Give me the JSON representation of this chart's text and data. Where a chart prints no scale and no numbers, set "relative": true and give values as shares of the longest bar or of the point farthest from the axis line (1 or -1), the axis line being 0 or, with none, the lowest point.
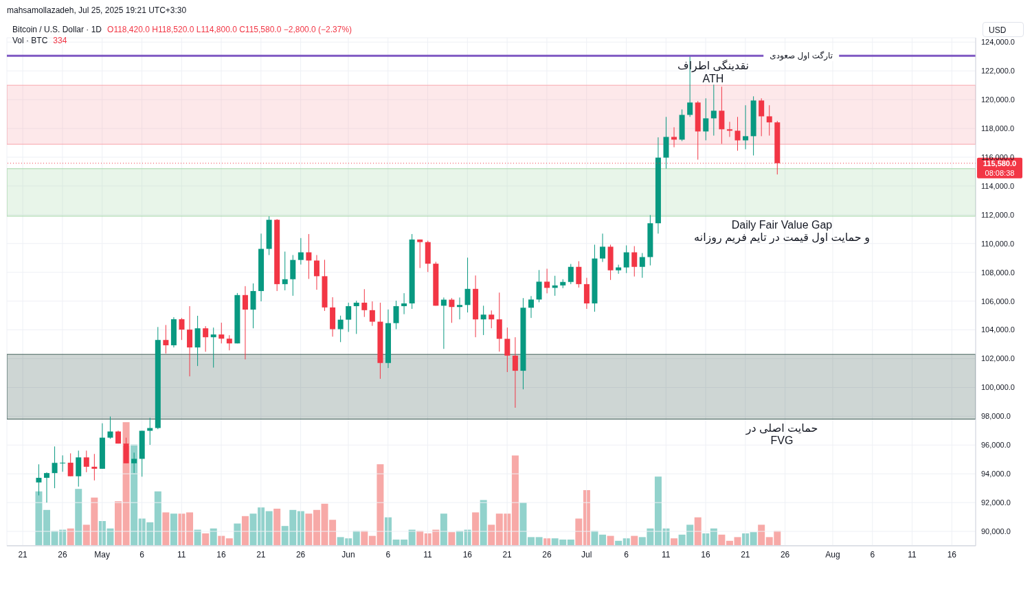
{
  "chart_data": [
    {
      "type": "candlestick",
      "title": "Bitcoin / U.S. Dollar · 1D",
      "ylabel": "USD",
      "annotations": [
        "mahsamollazadeh, Jul 25, 2025 19:21 UTC+3:30",
        "O118,420.0 H118,520.0 L114,800.0 C115,580.0 −2,800.0 (−2.37%)",
        "08:08:38",
        "نقدینگی اطراف\nATH"
      ],
      "x": [
        "2025-04-23",
        "2025-04-24",
        "2025-04-25",
        "2025-04-26",
        "2025-04-27",
        "2025-04-28",
        "2025-04-29",
        "2025-04-30",
        "2025-05-01",
        "2025-05-02",
        "2025-05-03",
        "2025-05-04",
        "2025-05-05",
        "2025-05-06",
        "2025-05-07",
        "2025-05-08",
        "2025-05-09",
        "2025-05-10",
        "2025-05-11",
        "2025-05-12",
        "2025-05-13",
        "2025-05-14",
        "2025-05-15",
        "2025-05-16",
        "2025-05-17",
        "2025-05-18",
        "2025-05-19",
        "2025-05-20",
        "2025-05-21",
        "2025-05-22",
        "2025-05-23",
        "2025-05-24",
        "2025-05-25",
        "2025-05-26",
        "2025-05-27",
        "2025-05-28",
        "2025-05-29",
        "2025-05-30",
        "2025-05-31",
        "2025-06-01",
        "2025-06-02",
        "2025-06-03",
        "2025-06-04",
        "2025-06-05",
        "2025-06-06",
        "2025-06-07",
        "2025-06-08",
        "2025-06-09",
        "2025-06-10",
        "2025-06-11",
        "2025-06-12",
        "2025-06-13",
        "2025-06-14",
        "2025-06-15",
        "2025-06-16",
        "2025-06-17",
        "2025-06-18",
        "2025-06-19",
        "2025-06-20",
        "2025-06-21",
        "2025-06-22",
        "2025-06-23",
        "2025-06-24",
        "2025-06-25",
        "2025-06-26",
        "2025-06-27",
        "2025-06-28",
        "2025-06-29",
        "2025-06-30",
        "2025-07-01",
        "2025-07-02",
        "2025-07-03",
        "2025-07-04",
        "2025-07-05",
        "2025-07-06",
        "2025-07-07",
        "2025-07-08",
        "2025-07-09",
        "2025-07-10",
        "2025-07-11",
        "2025-07-12",
        "2025-07-13",
        "2025-07-14",
        "2025-07-15",
        "2025-07-16",
        "2025-07-17",
        "2025-07-18",
        "2025-07-19",
        "2025-07-20",
        "2025-07-21",
        "2025-07-22",
        "2025-07-23",
        "2025-07-24",
        "2025-07-25"
      ],
      "ohlc": [
        [
          93400,
          94660,
          92500,
          93720
        ],
        [
          93720,
          94100,
          92000,
          94050
        ],
        [
          94050,
          95900,
          93000,
          94760
        ],
        [
          94760,
          95280,
          94140,
          94770
        ],
        [
          94770,
          95420,
          93830,
          93830
        ],
        [
          93830,
          95610,
          93110,
          95140
        ],
        [
          95140,
          95610,
          94110,
          94490
        ],
        [
          94490,
          95380,
          93540,
          94350
        ],
        [
          94350,
          97510,
          94350,
          96510
        ],
        [
          96510,
          97980,
          96430,
          96940
        ],
        [
          96940,
          97000,
          96100,
          96100
        ],
        [
          96100,
          96510,
          94730,
          94730
        ],
        [
          94730,
          95470,
          94060,
          95040
        ],
        [
          95040,
          96990,
          93800,
          96990
        ],
        [
          96990,
          97890,
          96010,
          97180
        ],
        [
          97180,
          104200,
          97100,
          103300
        ],
        [
          103300,
          104340,
          102360,
          102930
        ],
        [
          102930,
          104880,
          102780,
          104740
        ],
        [
          104740,
          104830,
          103300,
          104020
        ],
        [
          104020,
          105650,
          100770,
          102780
        ],
        [
          102780,
          104980,
          101490,
          104110
        ],
        [
          104110,
          104260,
          102480,
          103490
        ],
        [
          103490,
          104160,
          101380,
          103680
        ],
        [
          103680,
          104500,
          103060,
          103390
        ],
        [
          103390,
          103630,
          102580,
          103060
        ],
        [
          103060,
          106560,
          103060,
          106420
        ],
        [
          106420,
          107040,
          101950,
          105410
        ],
        [
          105410,
          107230,
          104110,
          106700
        ],
        [
          106700,
          110690,
          105980,
          109630
        ],
        [
          109630,
          111890,
          109200,
          111650
        ],
        [
          111650,
          111700,
          106700,
          107180
        ],
        [
          107180,
          109440,
          106750,
          107520
        ],
        [
          107520,
          109200,
          106370,
          108860
        ],
        [
          108860,
          110380,
          108540,
          109390
        ],
        [
          109390,
          110660,
          107540,
          108820
        ],
        [
          108820,
          109200,
          106790,
          107730
        ],
        [
          107730,
          108870,
          105320,
          105560
        ],
        [
          105560,
          106270,
          103530,
          104050
        ],
        [
          104050,
          104990,
          103150,
          104710
        ],
        [
          104710,
          105890,
          103860,
          105650
        ],
        [
          105650,
          106030,
          103720,
          105890
        ],
        [
          105890,
          106830,
          104900,
          105370
        ],
        [
          105370,
          105980,
          104280,
          104570
        ],
        [
          104570,
          105890,
          100600,
          101700
        ],
        [
          101700,
          105420,
          101350,
          104470
        ],
        [
          104470,
          106030,
          104050,
          105650
        ],
        [
          105650,
          106550,
          105090,
          105840
        ],
        [
          105840,
          110660,
          105460,
          110280
        ],
        [
          110280,
          110280,
          108300,
          110100
        ],
        [
          110100,
          110200,
          108020,
          108600
        ],
        [
          108600,
          108730,
          105680,
          105680
        ],
        [
          105680,
          106250,
          102680,
          106100
        ],
        [
          106100,
          106210,
          104490,
          105590
        ],
        [
          105590,
          106250,
          104730,
          105730
        ],
        [
          105730,
          109020,
          105210,
          106850
        ],
        [
          106850,
          107780,
          103490,
          104730
        ],
        [
          104730,
          105680,
          103640,
          105060
        ],
        [
          105060,
          105350,
          104110,
          104730
        ],
        [
          104730,
          106590,
          102490,
          103380
        ],
        [
          103380,
          104160,
          101070,
          102210
        ],
        [
          102210,
          103490,
          98590,
          101160
        ],
        [
          101160,
          106210,
          99870,
          105540
        ],
        [
          105540,
          106350,
          104830,
          106110
        ],
        [
          106110,
          108160,
          105920,
          107350
        ],
        [
          107350,
          108250,
          106540,
          106920
        ],
        [
          106920,
          107760,
          106370,
          107090
        ],
        [
          107090,
          107520,
          106900,
          107330
        ],
        [
          107330,
          108580,
          107180,
          108380
        ],
        [
          108380,
          108770,
          106940,
          107180
        ],
        [
          107180,
          107620,
          105460,
          105840
        ],
        [
          105840,
          109920,
          105260,
          108960
        ],
        [
          108960,
          110690,
          108720,
          109780
        ],
        [
          109780,
          109920,
          107470,
          108140
        ],
        [
          108140,
          108530,
          107900,
          108340
        ],
        [
          108340,
          109870,
          107950,
          109390
        ],
        [
          109390,
          109820,
          107710,
          108380
        ],
        [
          108380,
          109340,
          107620,
          109060
        ],
        [
          109060,
          111980,
          108480,
          111410
        ],
        [
          111410,
          117380,
          110690,
          115970
        ],
        [
          115970,
          118800,
          115210,
          117410
        ],
        [
          117410,
          118080,
          116690,
          117220
        ],
        [
          117220,
          119320,
          117120,
          118940
        ],
        [
          118940,
          123080,
          118800,
          119800
        ],
        [
          119800,
          119900,
          115830,
          117790
        ],
        [
          117790,
          120090,
          117170,
          118700
        ],
        [
          118700,
          121040,
          117500,
          119230
        ],
        [
          119230,
          120900,
          116930,
          117940
        ],
        [
          117940,
          118460,
          117410,
          117840
        ],
        [
          117840,
          118800,
          116450,
          117170
        ],
        [
          117170,
          119610,
          116550,
          117460
        ],
        [
          117460,
          120230,
          116120,
          119940
        ],
        [
          119940,
          120090,
          117460,
          118840
        ],
        [
          118840,
          119610,
          117500,
          118420
        ],
        [
          118420,
          118520,
          114800,
          115580
        ]
      ],
      "xlim": [
        "2025-04-19",
        "2025-08-19"
      ],
      "xticks": [
        {
          "value": "2025-04-21",
          "label": "21"
        },
        {
          "value": "2025-04-26",
          "label": "26"
        },
        {
          "value": "2025-05-01",
          "label": "May"
        },
        {
          "value": "2025-05-06",
          "label": "6"
        },
        {
          "value": "2025-05-11",
          "label": "11"
        },
        {
          "value": "2025-05-16",
          "label": "16"
        },
        {
          "value": "2025-05-21",
          "label": "21"
        },
        {
          "value": "2025-05-26",
          "label": "26"
        },
        {
          "value": "2025-06-01",
          "label": "Jun"
        },
        {
          "value": "2025-06-06",
          "label": "6"
        },
        {
          "value": "2025-06-11",
          "label": "11"
        },
        {
          "value": "2025-06-16",
          "label": "16"
        },
        {
          "value": "2025-06-21",
          "label": "21"
        },
        {
          "value": "2025-06-26",
          "label": "26"
        },
        {
          "value": "2025-07-01",
          "label": "Jul"
        },
        {
          "value": "2025-07-06",
          "label": "6"
        },
        {
          "value": "2025-07-11",
          "label": "11"
        },
        {
          "value": "2025-07-16",
          "label": "16"
        },
        {
          "value": "2025-07-21",
          "label": "21"
        },
        {
          "value": "2025-07-26",
          "label": "26"
        },
        {
          "value": "2025-08-01",
          "label": "Aug"
        },
        {
          "value": "2025-08-06",
          "label": "6"
        },
        {
          "value": "2025-08-11",
          "label": "11"
        },
        {
          "value": "2025-08-16",
          "label": "16"
        }
      ],
      "ylim": [
        89000,
        124300
      ],
      "yticks": [
        {
          "value": 90000,
          "label": "90,000.0"
        },
        {
          "value": 92000,
          "label": "92,000.0"
        },
        {
          "value": 94000,
          "label": "94,000.0"
        },
        {
          "value": 96000,
          "label": "96,000.0"
        },
        {
          "value": 98000,
          "label": "98,000.0"
        },
        {
          "value": 100000,
          "label": "100,000.0"
        },
        {
          "value": 102000,
          "label": "102,000.0"
        },
        {
          "value": 104000,
          "label": "104,000.0"
        },
        {
          "value": 106000,
          "label": "106,000.0"
        },
        {
          "value": 108000,
          "label": "108,000.0"
        },
        {
          "value": 110000,
          "label": "110,000.0"
        },
        {
          "value": 112000,
          "label": "112,000.0"
        },
        {
          "value": 114000,
          "label": "114,000.0"
        },
        {
          "value": 116000,
          "label": "116,000.0"
        },
        {
          "value": 118000,
          "label": "118,000.0"
        },
        {
          "value": 120000,
          "label": "120,000.0"
        },
        {
          "value": 122000,
          "label": "122,000.0"
        },
        {
          "value": 124000,
          "label": "124,000.0"
        }
      ],
      "grid": true,
      "ref_lines": [
        {
          "axis": "y",
          "value": 123050,
          "label": "تارگت اول صعودی",
          "color": "#7e57c2",
          "line_style": "solid"
        },
        {
          "axis": "y",
          "value": 115580,
          "label": "115,580.0",
          "color": "#f23645",
          "line_style": "dotted"
        }
      ],
      "bands": [
        {
          "axis": "y",
          "from": 97800,
          "to": 102300,
          "label": "حمایت اصلی در\nFVG",
          "color": "#3d5c55"
        },
        {
          "axis": "y",
          "from": 111900,
          "to": 115200,
          "label": "Daily Fair Value Gap\nو حمایت اول قیمت در تایم فریم روزانه",
          "color": "#a5d6a7"
        },
        {
          "axis": "y",
          "from": 116900,
          "to": 121000,
          "color": "#f8a5ab"
        }
      ]
    },
    {
      "type": "bar",
      "title": "Vol · BTC",
      "annotations": [
        "334"
      ],
      "relative": true,
      "xlim": [
        "2025-04-19",
        "2025-08-19"
      ],
      "x": [
        "2025-04-23",
        "2025-04-24",
        "2025-04-25",
        "2025-04-26",
        "2025-04-27",
        "2025-04-28",
        "2025-04-29",
        "2025-04-30",
        "2025-05-01",
        "2025-05-02",
        "2025-05-03",
        "2025-05-04",
        "2025-05-05",
        "2025-05-06",
        "2025-05-07",
        "2025-05-08",
        "2025-05-09",
        "2025-05-10",
        "2025-05-11",
        "2025-05-12",
        "2025-05-13",
        "2025-05-14",
        "2025-05-15",
        "2025-05-16",
        "2025-05-17",
        "2025-05-18",
        "2025-05-19",
        "2025-05-20",
        "2025-05-21",
        "2025-05-22",
        "2025-05-23",
        "2025-05-24",
        "2025-05-25",
        "2025-05-26",
        "2025-05-27",
        "2025-05-28",
        "2025-05-29",
        "2025-05-30",
        "2025-05-31",
        "2025-06-01",
        "2025-06-02",
        "2025-06-03",
        "2025-06-04",
        "2025-06-05",
        "2025-06-06",
        "2025-06-07",
        "2025-06-08",
        "2025-06-09",
        "2025-06-10",
        "2025-06-11",
        "2025-06-12",
        "2025-06-13",
        "2025-06-14",
        "2025-06-15",
        "2025-06-16",
        "2025-06-17",
        "2025-06-18",
        "2025-06-19",
        "2025-06-20",
        "2025-06-21",
        "2025-06-22",
        "2025-06-23",
        "2025-06-24",
        "2025-06-25",
        "2025-06-26",
        "2025-06-27",
        "2025-06-28",
        "2025-06-29",
        "2025-06-30",
        "2025-07-01",
        "2025-07-02",
        "2025-07-03",
        "2025-07-04",
        "2025-07-05",
        "2025-07-06",
        "2025-07-07",
        "2025-07-08",
        "2025-07-09",
        "2025-07-10",
        "2025-07-11",
        "2025-07-12",
        "2025-07-13",
        "2025-07-14",
        "2025-07-15",
        "2025-07-16",
        "2025-07-17",
        "2025-07-18",
        "2025-07-19",
        "2025-07-20",
        "2025-07-21",
        "2025-07-22",
        "2025-07-23",
        "2025-07-24",
        "2025-07-25"
      ],
      "values": [
        0.44,
        0.29,
        0.12,
        0.13,
        0.14,
        0.46,
        0.17,
        0.39,
        0.2,
        0.14,
        0.36,
        1,
        0.82,
        0.22,
        0.19,
        0.44,
        0.27,
        0.26,
        0.26,
        0.27,
        0.13,
        0.1,
        0.14,
        0.08,
        0.06,
        0.18,
        0.24,
        0.26,
        0.31,
        0.28,
        0.3,
        0.16,
        0.29,
        0.28,
        0.26,
        0.29,
        0.34,
        0.21,
        0.07,
        0.06,
        0.12,
        0.12,
        0.08,
        0.66,
        0.23,
        0.05,
        0.05,
        0.13,
        0.12,
        0.1,
        0.13,
        0.26,
        0.11,
        0.12,
        0.13,
        0.27,
        0.37,
        0.17,
        0.26,
        0.26,
        0.73,
        0.35,
        0.07,
        0.07,
        0.06,
        0.06,
        0.05,
        0.05,
        0.22,
        0.45,
        0.12,
        0.09,
        0.08,
        0.04,
        0.06,
        0.08,
        0.07,
        0.14,
        0.56,
        0.14,
        0.06,
        0.09,
        0.17,
        0.23,
        0.1,
        0.14,
        0.09,
        0.04,
        0.07,
        0.1,
        0.11,
        0.17,
        0.07,
        0.12
      ],
      "colors": [
        "#92d2cc",
        "#92d2cc",
        "#92d2cc",
        "#92d2cc",
        "#f7a9a7",
        "#92d2cc",
        "#f7a9a7",
        "#f7a9a7",
        "#92d2cc",
        "#92d2cc",
        "#f7a9a7",
        "#f7a9a7",
        "#92d2cc",
        "#92d2cc",
        "#92d2cc",
        "#92d2cc",
        "#f7a9a7",
        "#92d2cc",
        "#f7a9a7",
        "#f7a9a7",
        "#92d2cc",
        "#f7a9a7",
        "#92d2cc",
        "#f7a9a7",
        "#f7a9a7",
        "#92d2cc",
        "#f7a9a7",
        "#92d2cc",
        "#92d2cc",
        "#92d2cc",
        "#f7a9a7",
        "#92d2cc",
        "#92d2cc",
        "#92d2cc",
        "#f7a9a7",
        "#f7a9a7",
        "#f7a9a7",
        "#f7a9a7",
        "#92d2cc",
        "#92d2cc",
        "#92d2cc",
        "#f7a9a7",
        "#f7a9a7",
        "#f7a9a7",
        "#92d2cc",
        "#92d2cc",
        "#92d2cc",
        "#92d2cc",
        "#f7a9a7",
        "#f7a9a7",
        "#f7a9a7",
        "#92d2cc",
        "#f7a9a7",
        "#92d2cc",
        "#92d2cc",
        "#f7a9a7",
        "#92d2cc",
        "#f7a9a7",
        "#f7a9a7",
        "#f7a9a7",
        "#f7a9a7",
        "#92d2cc",
        "#92d2cc",
        "#92d2cc",
        "#f7a9a7",
        "#92d2cc",
        "#92d2cc",
        "#92d2cc",
        "#f7a9a7",
        "#f7a9a7",
        "#92d2cc",
        "#92d2cc",
        "#f7a9a7",
        "#92d2cc",
        "#92d2cc",
        "#f7a9a7",
        "#92d2cc",
        "#92d2cc",
        "#92d2cc",
        "#92d2cc",
        "#f7a9a7",
        "#92d2cc",
        "#92d2cc",
        "#f7a9a7",
        "#92d2cc",
        "#92d2cc",
        "#f7a9a7",
        "#f7a9a7",
        "#f7a9a7",
        "#92d2cc",
        "#92d2cc",
        "#f7a9a7",
        "#f7a9a7",
        "#f7a9a7"
      ]
    }
  ]
}
